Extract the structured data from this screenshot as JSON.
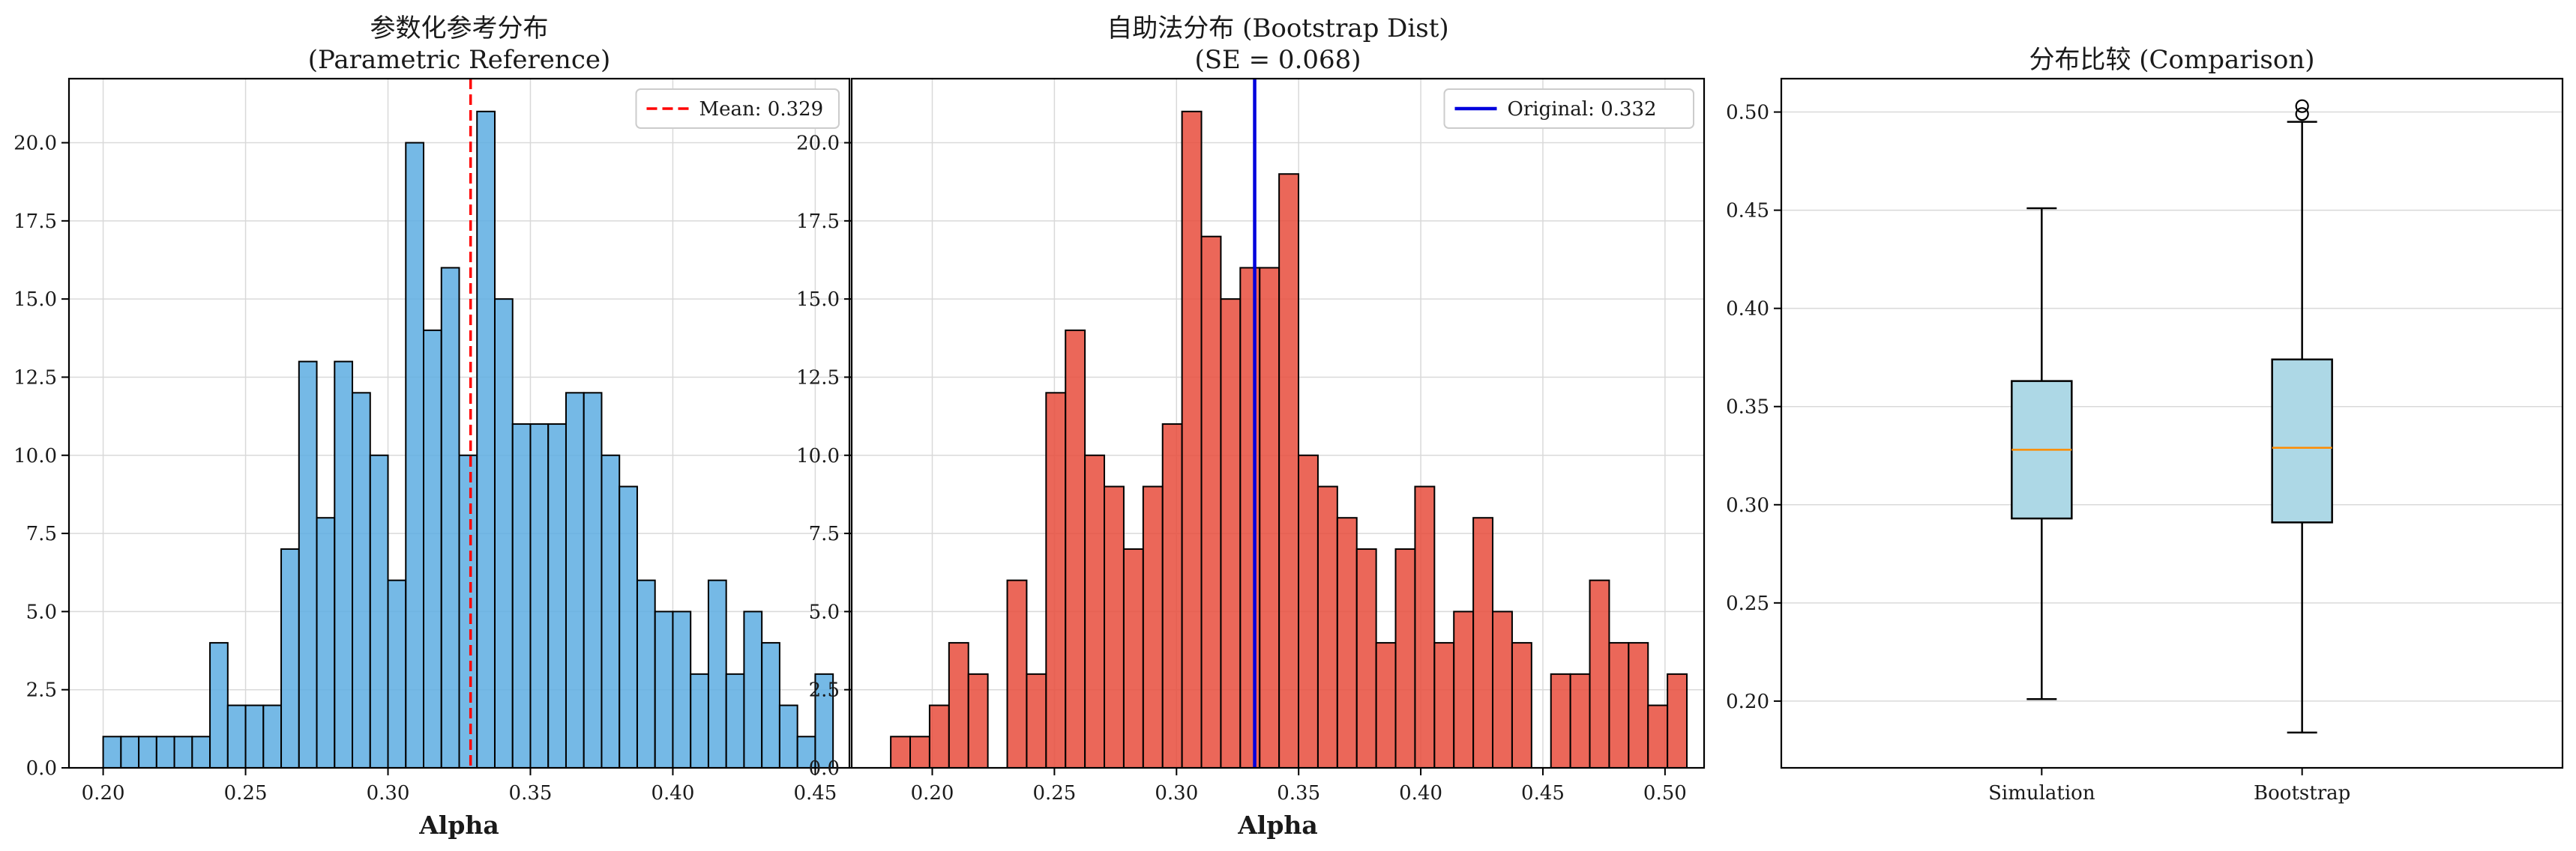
{
  "chart_data": [
    {
      "type": "bar",
      "subtype": "histogram",
      "title": "参数化参考分布\n(Parametric Reference)",
      "xlabel": "Alpha",
      "ylabel": "",
      "xlim": [
        0.188,
        0.462
      ],
      "ylim": [
        0,
        22.05
      ],
      "xticks": [
        0.2,
        0.25,
        0.3,
        0.35,
        0.4,
        0.45
      ],
      "xtick_labels": [
        "0.20",
        "0.25",
        "0.30",
        "0.35",
        "0.40",
        "0.45"
      ],
      "yticks": [
        0,
        2.5,
        5,
        7.5,
        10,
        12.5,
        15,
        17.5,
        20
      ],
      "ytick_labels": [
        "0.0",
        "2.5",
        "5.0",
        "7.5",
        "10.0",
        "12.5",
        "15.0",
        "17.5",
        "20.0"
      ],
      "grid": true,
      "color": "#5DADE2",
      "edge_color": "#000000",
      "bin_start": 0.2,
      "bin_width": 0.00625,
      "counts": [
        1,
        1,
        1,
        1,
        1,
        1,
        4,
        2,
        2,
        2,
        7,
        13,
        8,
        13,
        12,
        10,
        6,
        20,
        14,
        16,
        10,
        21,
        15,
        11,
        11,
        11,
        12,
        12,
        10,
        9,
        6,
        5,
        5,
        3,
        6,
        3,
        5,
        4,
        2,
        1,
        3
      ],
      "reference_line": {
        "label": "Mean: 0.329",
        "x": 0.329,
        "color": "#FF0000",
        "style": "dashed"
      },
      "legend": {
        "entries": [
          "Mean: 0.329"
        ],
        "position": "upper right"
      }
    },
    {
      "type": "bar",
      "subtype": "histogram",
      "title": "自助法分布 (Bootstrap Dist)\n(SE = 0.068)",
      "xlabel": "Alpha",
      "ylabel": "",
      "xlim": [
        0.167,
        0.516
      ],
      "ylim": [
        0,
        22.05
      ],
      "xticks": [
        0.2,
        0.25,
        0.3,
        0.35,
        0.4,
        0.45,
        0.5
      ],
      "xtick_labels": [
        "0.20",
        "0.25",
        "0.30",
        "0.35",
        "0.40",
        "0.45",
        "0.50"
      ],
      "yticks": [
        0,
        2.5,
        5,
        7.5,
        10,
        12.5,
        15,
        17.5,
        20
      ],
      "ytick_labels": [
        "0.0",
        "2.5",
        "5.0",
        "7.5",
        "10.0",
        "12.5",
        "15.0",
        "17.5",
        "20.0"
      ],
      "grid": true,
      "color": "#E74C3C",
      "edge_color": "#000000",
      "bin_start": 0.183,
      "bin_width": 0.00795,
      "counts": [
        1,
        1,
        2,
        4,
        3,
        0,
        6,
        3,
        12,
        14,
        10,
        9,
        7,
        9,
        11,
        21,
        17,
        15,
        16,
        16,
        19,
        10,
        9,
        8,
        7,
        4,
        7,
        9,
        4,
        5,
        8,
        5,
        4,
        0,
        3,
        3,
        6,
        4,
        4,
        2,
        3
      ],
      "reference_line": {
        "label": "Original: 0.332",
        "x": 0.332,
        "color": "#0000DD",
        "style": "solid"
      },
      "legend": {
        "entries": [
          "Original: 0.332"
        ],
        "position": "upper right"
      }
    },
    {
      "type": "box",
      "title": "分布比较 (Comparison)",
      "xlabel": "",
      "ylabel": "",
      "categories": [
        "Simulation",
        "Bootstrap"
      ],
      "ylim": [
        0.166,
        0.517
      ],
      "yticks": [
        0.2,
        0.25,
        0.3,
        0.35,
        0.4,
        0.45,
        0.5
      ],
      "ytick_labels": [
        "0.20",
        "0.25",
        "0.30",
        "0.35",
        "0.40",
        "0.45",
        "0.50"
      ],
      "grid": true,
      "box_color": "#ADD8E6",
      "median_color": "#FF8C00",
      "boxes": [
        {
          "name": "Simulation",
          "whisker_low": 0.201,
          "q1": 0.293,
          "median": 0.328,
          "q3": 0.363,
          "whisker_high": 0.451,
          "outliers": []
        },
        {
          "name": "Bootstrap",
          "whisker_low": 0.184,
          "q1": 0.291,
          "median": 0.329,
          "q3": 0.374,
          "whisker_high": 0.495,
          "outliers": [
            0.499,
            0.503
          ]
        }
      ]
    }
  ]
}
